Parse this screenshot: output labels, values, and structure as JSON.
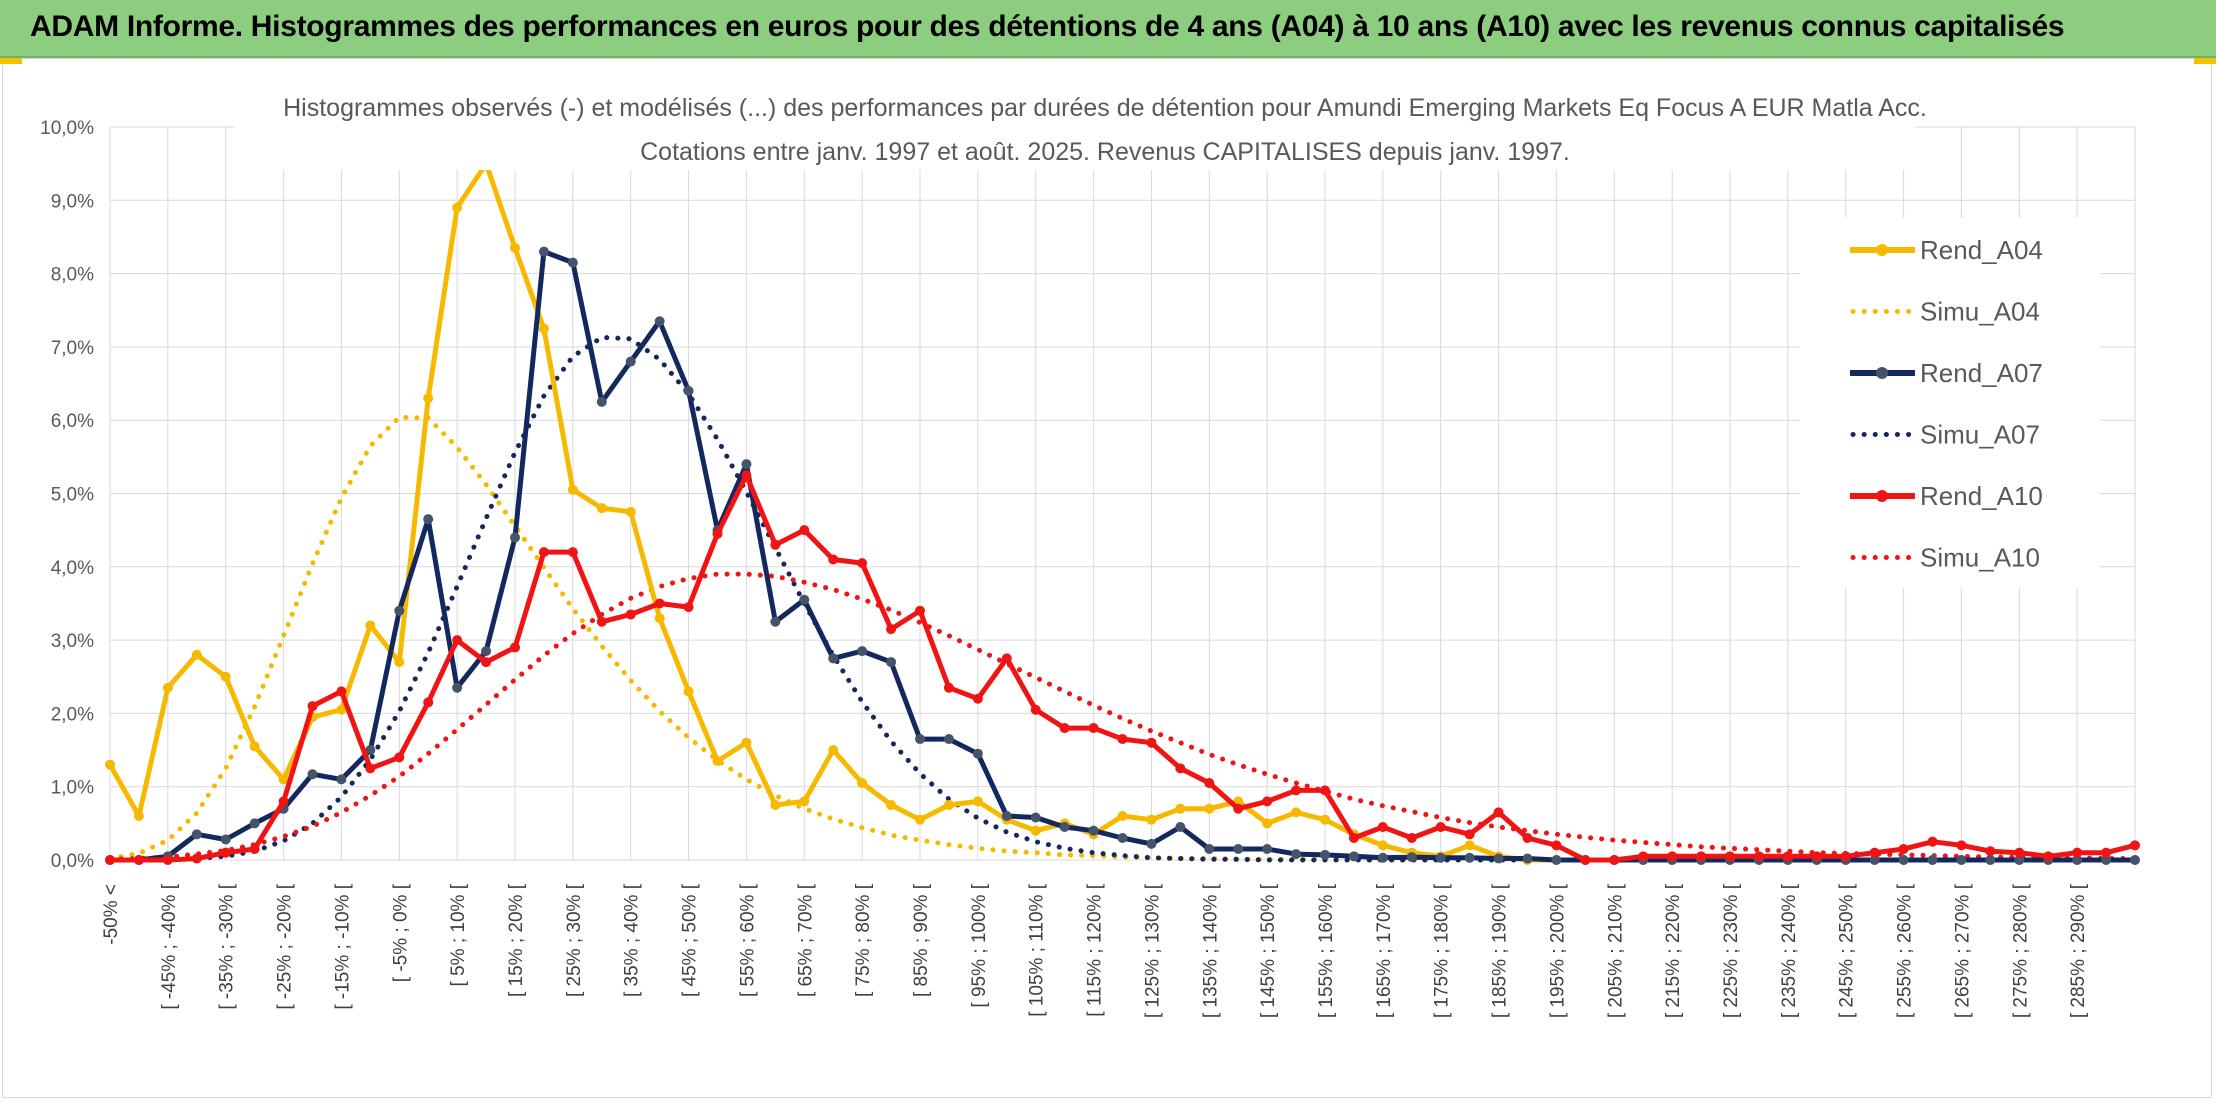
{
  "banner": {
    "title": "ADAM Informe. Histogrammes des performances en euros pour des détentions de 4 ans (A04) à 10 ans (A10) avec les revenus connus capitalisés"
  },
  "chart_data": {
    "type": "line",
    "title_line1": "Histogrammes observés (-) et modélisés (...) des performances par durées de détention pour Amundi Emerging Markets Eq Focus A EUR Matla Acc.",
    "title_line2": "Cotations entre janv. 1997 et août. 2025. Revenus CAPITALISES depuis janv. 1997.",
    "ylim": [
      0,
      10
    ],
    "yticks": [
      "0,0%",
      "1,0%",
      "2,0%",
      "3,0%",
      "4,0%",
      "5,0%",
      "6,0%",
      "7,0%",
      "8,0%",
      "9,0%",
      "10,0%"
    ],
    "xlabels": [
      "-50% <",
      "[ -45% ; -40% [",
      "[ -35% ; -30% [",
      "[ -25% ; -20% [",
      "[ -15% ; -10% [",
      "[ -5% ; 0% [",
      "[ 5% ; 10% [",
      "[ 15% ; 20% [",
      "[ 25% ; 30% [",
      "[ 35% ; 40% [",
      "[ 45% ; 50% [",
      "[ 55% ; 60% [",
      "[ 65% ; 70% [",
      "[ 75% ; 80% [",
      "[ 85% ; 90% [",
      "[ 95% ; 100% [",
      "[ 105% ; 110% [",
      "[ 115% ; 120% [",
      "[ 125% ; 130% [",
      "[ 135% ; 140% [",
      "[ 145% ; 150% [",
      "[ 155% ; 160% [",
      "[ 165% ; 170% [",
      "[ 175% ; 180% [",
      "[ 185% ; 190% [",
      "[ 195% ; 200% [",
      "[ 205% ; 210% [",
      "[ 215% ; 220% [",
      "[ 225% ; 230% [",
      "[ 235% ; 240% [",
      "[ 245% ; 250% [",
      "[ 255% ; 260% [",
      "[ 265% ; 270% [",
      "[ 275% ; 280% [",
      "[ 285% ; 290% ["
    ],
    "grid": true,
    "legend_position": "right",
    "series": [
      {
        "name": "Rend_A04",
        "style": "solid",
        "color": "#f7b900",
        "values": [
          1.3,
          0.6,
          2.35,
          2.8,
          2.5,
          1.55,
          1.1,
          1.95,
          2.05,
          3.2,
          2.7,
          6.3,
          8.9,
          9.5,
          8.35,
          7.25,
          5.05,
          4.8,
          4.75,
          3.3,
          2.3,
          1.35,
          1.6,
          0.75,
          0.8,
          1.5,
          1.05,
          0.75,
          0.55,
          0.75,
          0.8,
          0.55,
          0.4,
          0.5,
          0.35,
          0.6,
          0.55,
          0.7,
          0.7,
          0.8,
          0.5,
          0.65,
          0.55,
          0.35,
          0.2,
          0.1,
          0.05,
          0.2,
          0.05,
          0,
          0,
          0,
          0,
          0,
          0,
          0,
          0,
          0,
          0,
          0,
          0,
          0,
          0,
          0,
          0,
          0,
          0,
          0,
          0,
          0,
          0
        ]
      },
      {
        "name": "Simu_A04",
        "style": "dotted",
        "color": "#f7b900",
        "values": [
          0.02,
          0.09,
          0.27,
          0.64,
          1.25,
          2.09,
          3.06,
          4.04,
          4.94,
          5.65,
          6.04,
          6.03,
          5.63,
          5.12,
          4.56,
          3.99,
          3.43,
          2.92,
          2.45,
          2.03,
          1.67,
          1.36,
          1.1,
          0.88,
          0.7,
          0.56,
          0.44,
          0.34,
          0.27,
          0.21,
          0.16,
          0.12,
          0.1,
          0.07,
          0.06,
          0.04,
          0.03,
          0.02,
          0.02,
          0.01,
          0.01,
          0.01,
          0.01,
          0.01,
          0,
          0,
          0,
          0,
          0,
          0,
          0,
          0,
          0,
          0,
          0,
          0,
          0,
          0,
          0,
          0,
          0,
          0,
          0,
          0,
          0,
          0,
          0,
          0,
          0,
          0,
          0
        ]
      },
      {
        "name": "Rend_A07",
        "style": "solid",
        "color": "#13285e",
        "values": [
          0,
          0,
          0.05,
          0.35,
          0.28,
          0.5,
          0.7,
          1.17,
          1.1,
          1.5,
          3.4,
          4.65,
          2.35,
          2.85,
          4.4,
          8.3,
          8.15,
          6.25,
          6.8,
          7.35,
          6.4,
          4.5,
          5.4,
          3.25,
          3.55,
          2.75,
          2.85,
          2.7,
          1.65,
          1.65,
          1.45,
          0.6,
          0.58,
          0.45,
          0.4,
          0.3,
          0.22,
          0.45,
          0.15,
          0.15,
          0.15,
          0.08,
          0.07,
          0.05,
          0.03,
          0.04,
          0.03,
          0.03,
          0.02,
          0.02,
          0,
          0,
          0,
          0,
          0,
          0,
          0,
          0,
          0,
          0,
          0,
          0,
          0,
          0,
          0,
          0,
          0,
          0,
          0,
          0,
          0
        ]
      },
      {
        "name": "Simu_A07",
        "style": "dotted",
        "color": "#13285e",
        "values": [
          0,
          0,
          0,
          0.02,
          0.05,
          0.12,
          0.26,
          0.5,
          0.86,
          1.37,
          2.03,
          2.83,
          3.73,
          4.66,
          5.56,
          6.33,
          6.87,
          7.13,
          7.11,
          6.83,
          6.36,
          5.74,
          5.02,
          4.26,
          3.5,
          2.79,
          2.16,
          1.62,
          1.18,
          0.83,
          0.57,
          0.38,
          0.25,
          0.16,
          0.1,
          0.06,
          0.03,
          0.02,
          0.01,
          0.01,
          0,
          0,
          0,
          0,
          0,
          0,
          0,
          0,
          0,
          0,
          0,
          0,
          0,
          0,
          0,
          0,
          0,
          0,
          0,
          0,
          0,
          0,
          0,
          0,
          0,
          0,
          0,
          0,
          0,
          0,
          0
        ]
      },
      {
        "name": "Rend_A10",
        "style": "solid",
        "color": "#f01414",
        "values": [
          0,
          0,
          0,
          0.02,
          0.1,
          0.15,
          0.8,
          2.1,
          2.3,
          1.25,
          1.4,
          2.15,
          3.0,
          2.7,
          2.9,
          4.2,
          4.2,
          3.25,
          3.35,
          3.5,
          3.45,
          4.45,
          5.25,
          4.3,
          4.5,
          4.1,
          4.05,
          3.15,
          3.4,
          2.35,
          2.2,
          2.75,
          2.05,
          1.8,
          1.8,
          1.65,
          1.6,
          1.25,
          1.05,
          0.7,
          0.8,
          0.95,
          0.95,
          0.3,
          0.45,
          0.3,
          0.45,
          0.35,
          0.65,
          0.3,
          0.2,
          0,
          0,
          0.05,
          0.05,
          0.05,
          0.05,
          0.05,
          0.05,
          0.05,
          0.05,
          0.1,
          0.15,
          0.25,
          0.2,
          0.12,
          0.1,
          0.05,
          0.1,
          0.1,
          0.2
        ]
      },
      {
        "name": "Simu_A10",
        "style": "dotted",
        "color": "#f01414",
        "values": [
          0.01,
          0.02,
          0.04,
          0.08,
          0.13,
          0.21,
          0.32,
          0.46,
          0.65,
          0.88,
          1.14,
          1.45,
          1.78,
          2.12,
          2.46,
          2.79,
          3.09,
          3.35,
          3.57,
          3.73,
          3.84,
          3.9,
          3.9,
          3.87,
          3.79,
          3.69,
          3.56,
          3.41,
          3.24,
          3.06,
          2.87,
          2.68,
          2.49,
          2.3,
          2.11,
          1.93,
          1.76,
          1.6,
          1.44,
          1.3,
          1.17,
          1.05,
          0.94,
          0.83,
          0.74,
          0.66,
          0.58,
          0.51,
          0.45,
          0.4,
          0.35,
          0.31,
          0.27,
          0.24,
          0.21,
          0.18,
          0.16,
          0.14,
          0.12,
          0.1,
          0.09,
          0.08,
          0.07,
          0.06,
          0.05,
          0.04,
          0.04,
          0.03,
          0.03,
          0.02,
          0.02
        ]
      }
    ]
  }
}
